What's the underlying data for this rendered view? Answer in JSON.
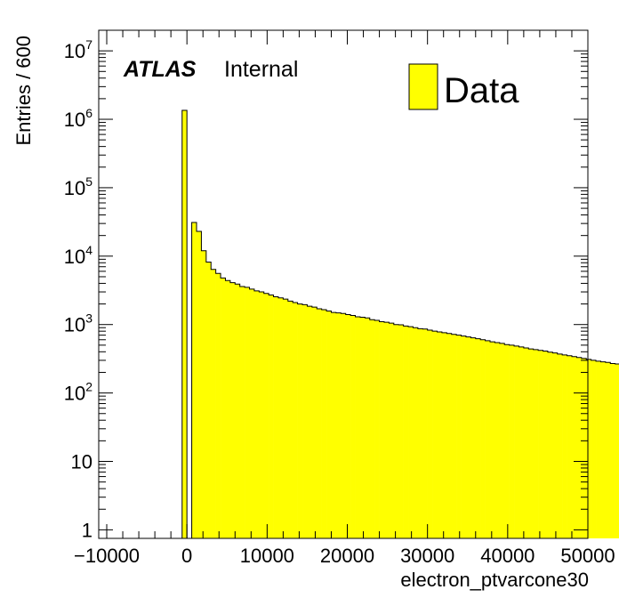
{
  "chart_data": {
    "type": "bar",
    "xlabel": "electron_ptvarcone30",
    "ylabel": "Entries / 600",
    "xlim": [
      -11000,
      50000
    ],
    "ylim": [
      0.75,
      20000000
    ],
    "log_y": true,
    "grid": false,
    "legend_position": "top-right",
    "bar_color": "#ffff00",
    "edge_color": "#000000",
    "experiment": "ATLAS",
    "status": "Internal",
    "x_ticks": [
      {
        "value": -10000,
        "label": "−10000"
      },
      {
        "value": 0,
        "label": "0"
      },
      {
        "value": 10000,
        "label": "10000"
      },
      {
        "value": 20000,
        "label": "20000"
      },
      {
        "value": 30000,
        "label": "30000"
      },
      {
        "value": 40000,
        "label": "40000"
      },
      {
        "value": 50000,
        "label": "50000"
      }
    ],
    "y_ticks": [
      {
        "value": 1,
        "base": "1",
        "exp": ""
      },
      {
        "value": 10,
        "base": "10",
        "exp": ""
      },
      {
        "value": 100,
        "base": "10",
        "exp": "2"
      },
      {
        "value": 1000,
        "base": "10",
        "exp": "3"
      },
      {
        "value": 10000,
        "base": "10",
        "exp": "4"
      },
      {
        "value": 100000,
        "base": "10",
        "exp": "5"
      },
      {
        "value": 1000000,
        "base": "10",
        "exp": "6"
      },
      {
        "value": 10000000,
        "base": "10",
        "exp": "7"
      }
    ],
    "series": [
      {
        "name": "Data",
        "bin_width": 600,
        "bins_start": -600,
        "values": [
          1350000,
          0,
          31000,
          23000,
          12000,
          8200,
          6400,
          5600,
          4800,
          4400,
          4100,
          3900,
          3600,
          3500,
          3300,
          3100,
          3000,
          2850,
          2700,
          2550,
          2450,
          2350,
          2200,
          2100,
          2000,
          1950,
          1850,
          1800,
          1700,
          1650,
          1580,
          1500,
          1480,
          1450,
          1400,
          1360,
          1300,
          1280,
          1250,
          1180,
          1150,
          1100,
          1080,
          1050,
          1000,
          990,
          950,
          930,
          900,
          870,
          860,
          830,
          800,
          780,
          760,
          740,
          720,
          700,
          680,
          660,
          640,
          620,
          600,
          580,
          560,
          545,
          530,
          510,
          500,
          485,
          470,
          455,
          440,
          430,
          420,
          410,
          395,
          385,
          370,
          360,
          350,
          340,
          330,
          320,
          310,
          300,
          292,
          285,
          280,
          270,
          265,
          260
        ]
      }
    ]
  }
}
